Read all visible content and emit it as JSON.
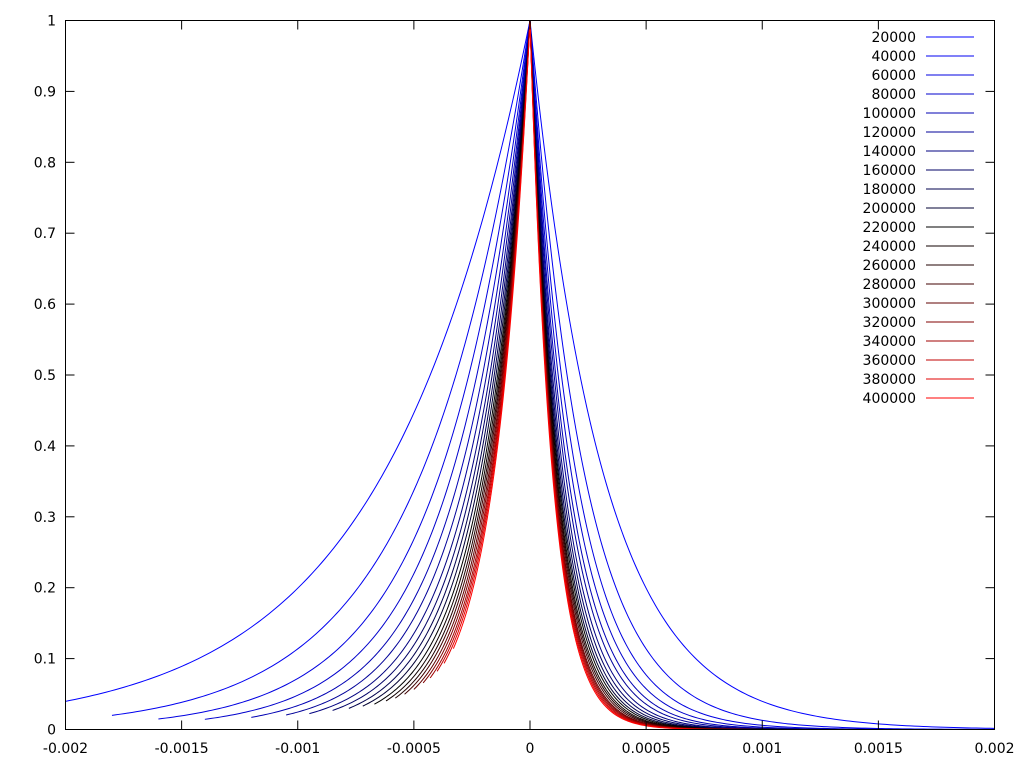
{
  "chart_data": {
    "type": "line",
    "title": "",
    "xlabel": "",
    "ylabel": "",
    "xlim": [
      -0.002,
      0.002
    ],
    "ylim": [
      0,
      1
    ],
    "x_ticks": [
      "-0.002",
      "-0.0015",
      "-0.001",
      "-0.0005",
      "0",
      "0.0005",
      "0.001",
      "0.0015",
      "0.002"
    ],
    "y_ticks": [
      "0",
      "0.1",
      "0.2",
      "0.3",
      "0.4",
      "0.5",
      "0.6",
      "0.7",
      "0.8",
      "0.9",
      "1"
    ],
    "grid": false,
    "legend_position": "top-right",
    "series": [
      {
        "name": "20000",
        "color": "#0000ff",
        "left_decay": 0.00062,
        "right_decay": 0.00031,
        "left_cut": -0.002
      },
      {
        "name": "40000",
        "color": "#0000f0",
        "left_decay": 0.00046,
        "right_decay": 0.00023,
        "left_cut": -0.0018
      },
      {
        "name": "60000",
        "color": "#0000e0",
        "left_decay": 0.00038,
        "right_decay": 0.000195,
        "left_cut": -0.0016
      },
      {
        "name": "80000",
        "color": "#0000cc",
        "left_decay": 0.00033,
        "right_decay": 0.000175,
        "left_cut": -0.0014
      },
      {
        "name": "100000",
        "color": "#0000b3",
        "left_decay": 0.000295,
        "right_decay": 0.00016,
        "left_cut": -0.0012
      },
      {
        "name": "120000",
        "color": "#000099",
        "left_decay": 0.00027,
        "right_decay": 0.00015,
        "left_cut": -0.00105
      },
      {
        "name": "140000",
        "color": "#000080",
        "left_decay": 0.00025,
        "right_decay": 0.00014,
        "left_cut": -0.00095
      },
      {
        "name": "160000",
        "color": "#000066",
        "left_decay": 0.000235,
        "right_decay": 0.000133,
        "left_cut": -0.00085
      },
      {
        "name": "180000",
        "color": "#00004d",
        "left_decay": 0.000222,
        "right_decay": 0.000127,
        "left_cut": -0.00078
      },
      {
        "name": "200000",
        "color": "#000033",
        "left_decay": 0.000211,
        "right_decay": 0.000122,
        "left_cut": -0.00072
      },
      {
        "name": "220000",
        "color": "#000000",
        "left_decay": 0.000201,
        "right_decay": 0.000118,
        "left_cut": -0.00067
      },
      {
        "name": "240000",
        "color": "#100000",
        "left_decay": 0.000193,
        "right_decay": 0.000114,
        "left_cut": -0.00062
      },
      {
        "name": "260000",
        "color": "#200000",
        "left_decay": 0.000186,
        "right_decay": 0.000111,
        "left_cut": -0.00058
      },
      {
        "name": "280000",
        "color": "#400000",
        "left_decay": 0.00018,
        "right_decay": 0.000108,
        "left_cut": -0.00054
      },
      {
        "name": "300000",
        "color": "#600000",
        "left_decay": 0.000174,
        "right_decay": 0.000105,
        "left_cut": -0.0005
      },
      {
        "name": "320000",
        "color": "#800000",
        "left_decay": 0.000169,
        "right_decay": 0.000103,
        "left_cut": -0.00046
      },
      {
        "name": "340000",
        "color": "#a00000",
        "left_decay": 0.000164,
        "right_decay": 0.000101,
        "left_cut": -0.00043
      },
      {
        "name": "360000",
        "color": "#c00000",
        "left_decay": 0.00016,
        "right_decay": 9.9e-05,
        "left_cut": -0.0004
      },
      {
        "name": "380000",
        "color": "#e00000",
        "left_decay": 0.000156,
        "right_decay": 9.7e-05,
        "left_cut": -0.00037
      },
      {
        "name": "400000",
        "color": "#ff0000",
        "left_decay": 0.000152,
        "right_decay": 9.5e-05,
        "left_cut": -0.00033
      }
    ]
  }
}
